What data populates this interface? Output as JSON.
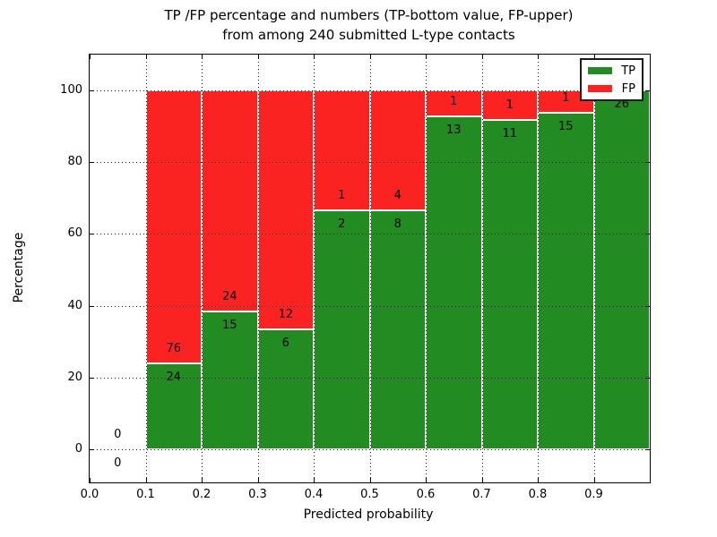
{
  "figure": {
    "title_line1": "TP /FP percentage and numbers (TP-bottom value, FP-upper)",
    "title_line2": "from among 240 submitted L-type contacts",
    "xlabel": "Predicted probability",
    "ylabel": "Percentage",
    "background_color": "#ffffff"
  },
  "legend": {
    "position": "upper right",
    "items": [
      {
        "label": "TP",
        "color": "#228b22"
      },
      {
        "label": "FP",
        "color": "#fb2222"
      }
    ]
  },
  "chart_data": {
    "type": "bar",
    "stacked": true,
    "units": "percent of bin, annotated with raw counts",
    "title": "TP /FP percentage and numbers (TP-bottom value, FP-upper) from among 240 submitted L-type contacts",
    "xlabel": "Predicted probability",
    "ylabel": "Percentage",
    "xlim": [
      0.0,
      1.0
    ],
    "ylim": [
      -9,
      109
    ],
    "x_ticks": [
      "0.0",
      "0.1",
      "0.2",
      "0.3",
      "0.4",
      "0.5",
      "0.6",
      "0.7",
      "0.8",
      "0.9"
    ],
    "y_ticks": [
      "0",
      "20",
      "40",
      "60",
      "80",
      "100"
    ],
    "grid": "dotted, both axes, drawn over bars",
    "legend_position": "upper right",
    "total_submitted": 240,
    "series": [
      {
        "name": "TP",
        "color": "#228b22",
        "counts": [
          0,
          24,
          15,
          6,
          2,
          8,
          13,
          11,
          15,
          26
        ]
      },
      {
        "name": "FP",
        "color": "#fb2222",
        "counts": [
          0,
          76,
          24,
          12,
          1,
          4,
          1,
          1,
          1,
          0
        ]
      }
    ],
    "bins": [
      {
        "range": [
          0.0,
          0.1
        ],
        "tp": 0,
        "fp": 0,
        "bar": false,
        "tp_pct": null,
        "fp_label": "0",
        "tp_label": "0"
      },
      {
        "range": [
          0.1,
          0.2
        ],
        "tp": 24,
        "fp": 76,
        "bar": true,
        "tp_pct": 24.0,
        "fp_label": "76",
        "tp_label": "24"
      },
      {
        "range": [
          0.2,
          0.3
        ],
        "tp": 15,
        "fp": 24,
        "bar": true,
        "tp_pct": 38.46,
        "fp_label": "24",
        "tp_label": "15"
      },
      {
        "range": [
          0.3,
          0.4
        ],
        "tp": 6,
        "fp": 12,
        "bar": true,
        "tp_pct": 33.33,
        "fp_label": "12",
        "tp_label": "6"
      },
      {
        "range": [
          0.4,
          0.5
        ],
        "tp": 2,
        "fp": 1,
        "bar": true,
        "tp_pct": 66.67,
        "fp_label": "1",
        "tp_label": "2"
      },
      {
        "range": [
          0.5,
          0.6
        ],
        "tp": 8,
        "fp": 4,
        "bar": true,
        "tp_pct": 66.67,
        "fp_label": "4",
        "tp_label": "8"
      },
      {
        "range": [
          0.6,
          0.7
        ],
        "tp": 13,
        "fp": 1,
        "bar": true,
        "tp_pct": 92.86,
        "fp_label": "1",
        "tp_label": "13"
      },
      {
        "range": [
          0.7,
          0.8
        ],
        "tp": 11,
        "fp": 1,
        "bar": true,
        "tp_pct": 91.67,
        "fp_label": "1",
        "tp_label": "11"
      },
      {
        "range": [
          0.8,
          0.9
        ],
        "tp": 15,
        "fp": 1,
        "bar": true,
        "tp_pct": 93.75,
        "fp_label": "1",
        "tp_label": "15"
      },
      {
        "range": [
          0.9,
          1.0
        ],
        "tp": 26,
        "fp": 0,
        "bar": true,
        "tp_pct": 100.0,
        "fp_label": null,
        "tp_label": "26"
      }
    ]
  }
}
